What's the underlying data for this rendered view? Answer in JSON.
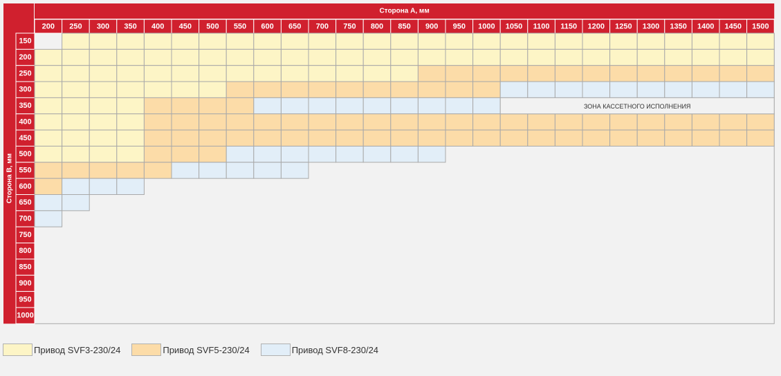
{
  "chart_data": {
    "type": "table",
    "title": "",
    "xlabel": "Сторона А, мм",
    "ylabel": "Сторона В, мм",
    "a_sizes": [
      "200",
      "250",
      "300",
      "350",
      "400",
      "450",
      "500",
      "550",
      "600",
      "650",
      "700",
      "750",
      "800",
      "850",
      "900",
      "950",
      "1000",
      "1050",
      "1100",
      "1150",
      "1200",
      "1250",
      "1300",
      "1350",
      "1400",
      "1450",
      "1500"
    ],
    "b_sizes": [
      "150",
      "200",
      "250",
      "300",
      "350",
      "400",
      "450",
      "500",
      "550",
      "600",
      "650",
      "700",
      "750",
      "800",
      "850",
      "900",
      "950",
      "1000"
    ],
    "rows": [
      "-YYYYYYYYYYYYYYYYYYYYYYYYYY",
      "YYYYYYYYYYYYYYYYYYYYYYYYYYY",
      "YYYYYYYYYYYYYYOOOOOOOOOOOOO",
      "YYYYYYYOOOOOOOOOOLLLLLLLLLL",
      "YYYYOOOOLLLLLLLLL----------",
      "YYYYOOOOOOOOOOOOOOOOOOOOOOO",
      "YYYYOOOOOOOOOOOOOOOOOOOOOOO",
      "YYYYOOOLLLLLLLL------------",
      "OOOOOLLLLL-----------------",
      "OLLL-----------------------",
      "LL-------------------------",
      "L--------------------------",
      "---------------------------",
      "---------------------------",
      "---------------------------",
      "---------------------------",
      "---------------------------",
      "---------------------------"
    ],
    "cell_legend": {
      "Y": "Привод SVF3-230/24",
      "O": "Привод SVF5-230/24",
      "L": "Привод SVF8-230/24",
      "-": "none"
    },
    "annotation": {
      "text": "ЗОНА КАССЕТНОГО ИСПОЛНЕНИЯ",
      "row": "350",
      "from": "1050",
      "to": "1500"
    }
  },
  "colors": {
    "header_red": "#d0202e",
    "svf3": "#fdf5c6",
    "svf5": "#fcdca8",
    "svf8": "#e2eef8",
    "grid": "#a9a9a9",
    "empty": "#f2f2f2"
  },
  "legend": [
    {
      "key": "Y",
      "label": "Привод SVF3-230/24"
    },
    {
      "key": "O",
      "label": "Привод SVF5-230/24"
    },
    {
      "key": "L",
      "label": "Привод SVF8-230/24"
    }
  ]
}
